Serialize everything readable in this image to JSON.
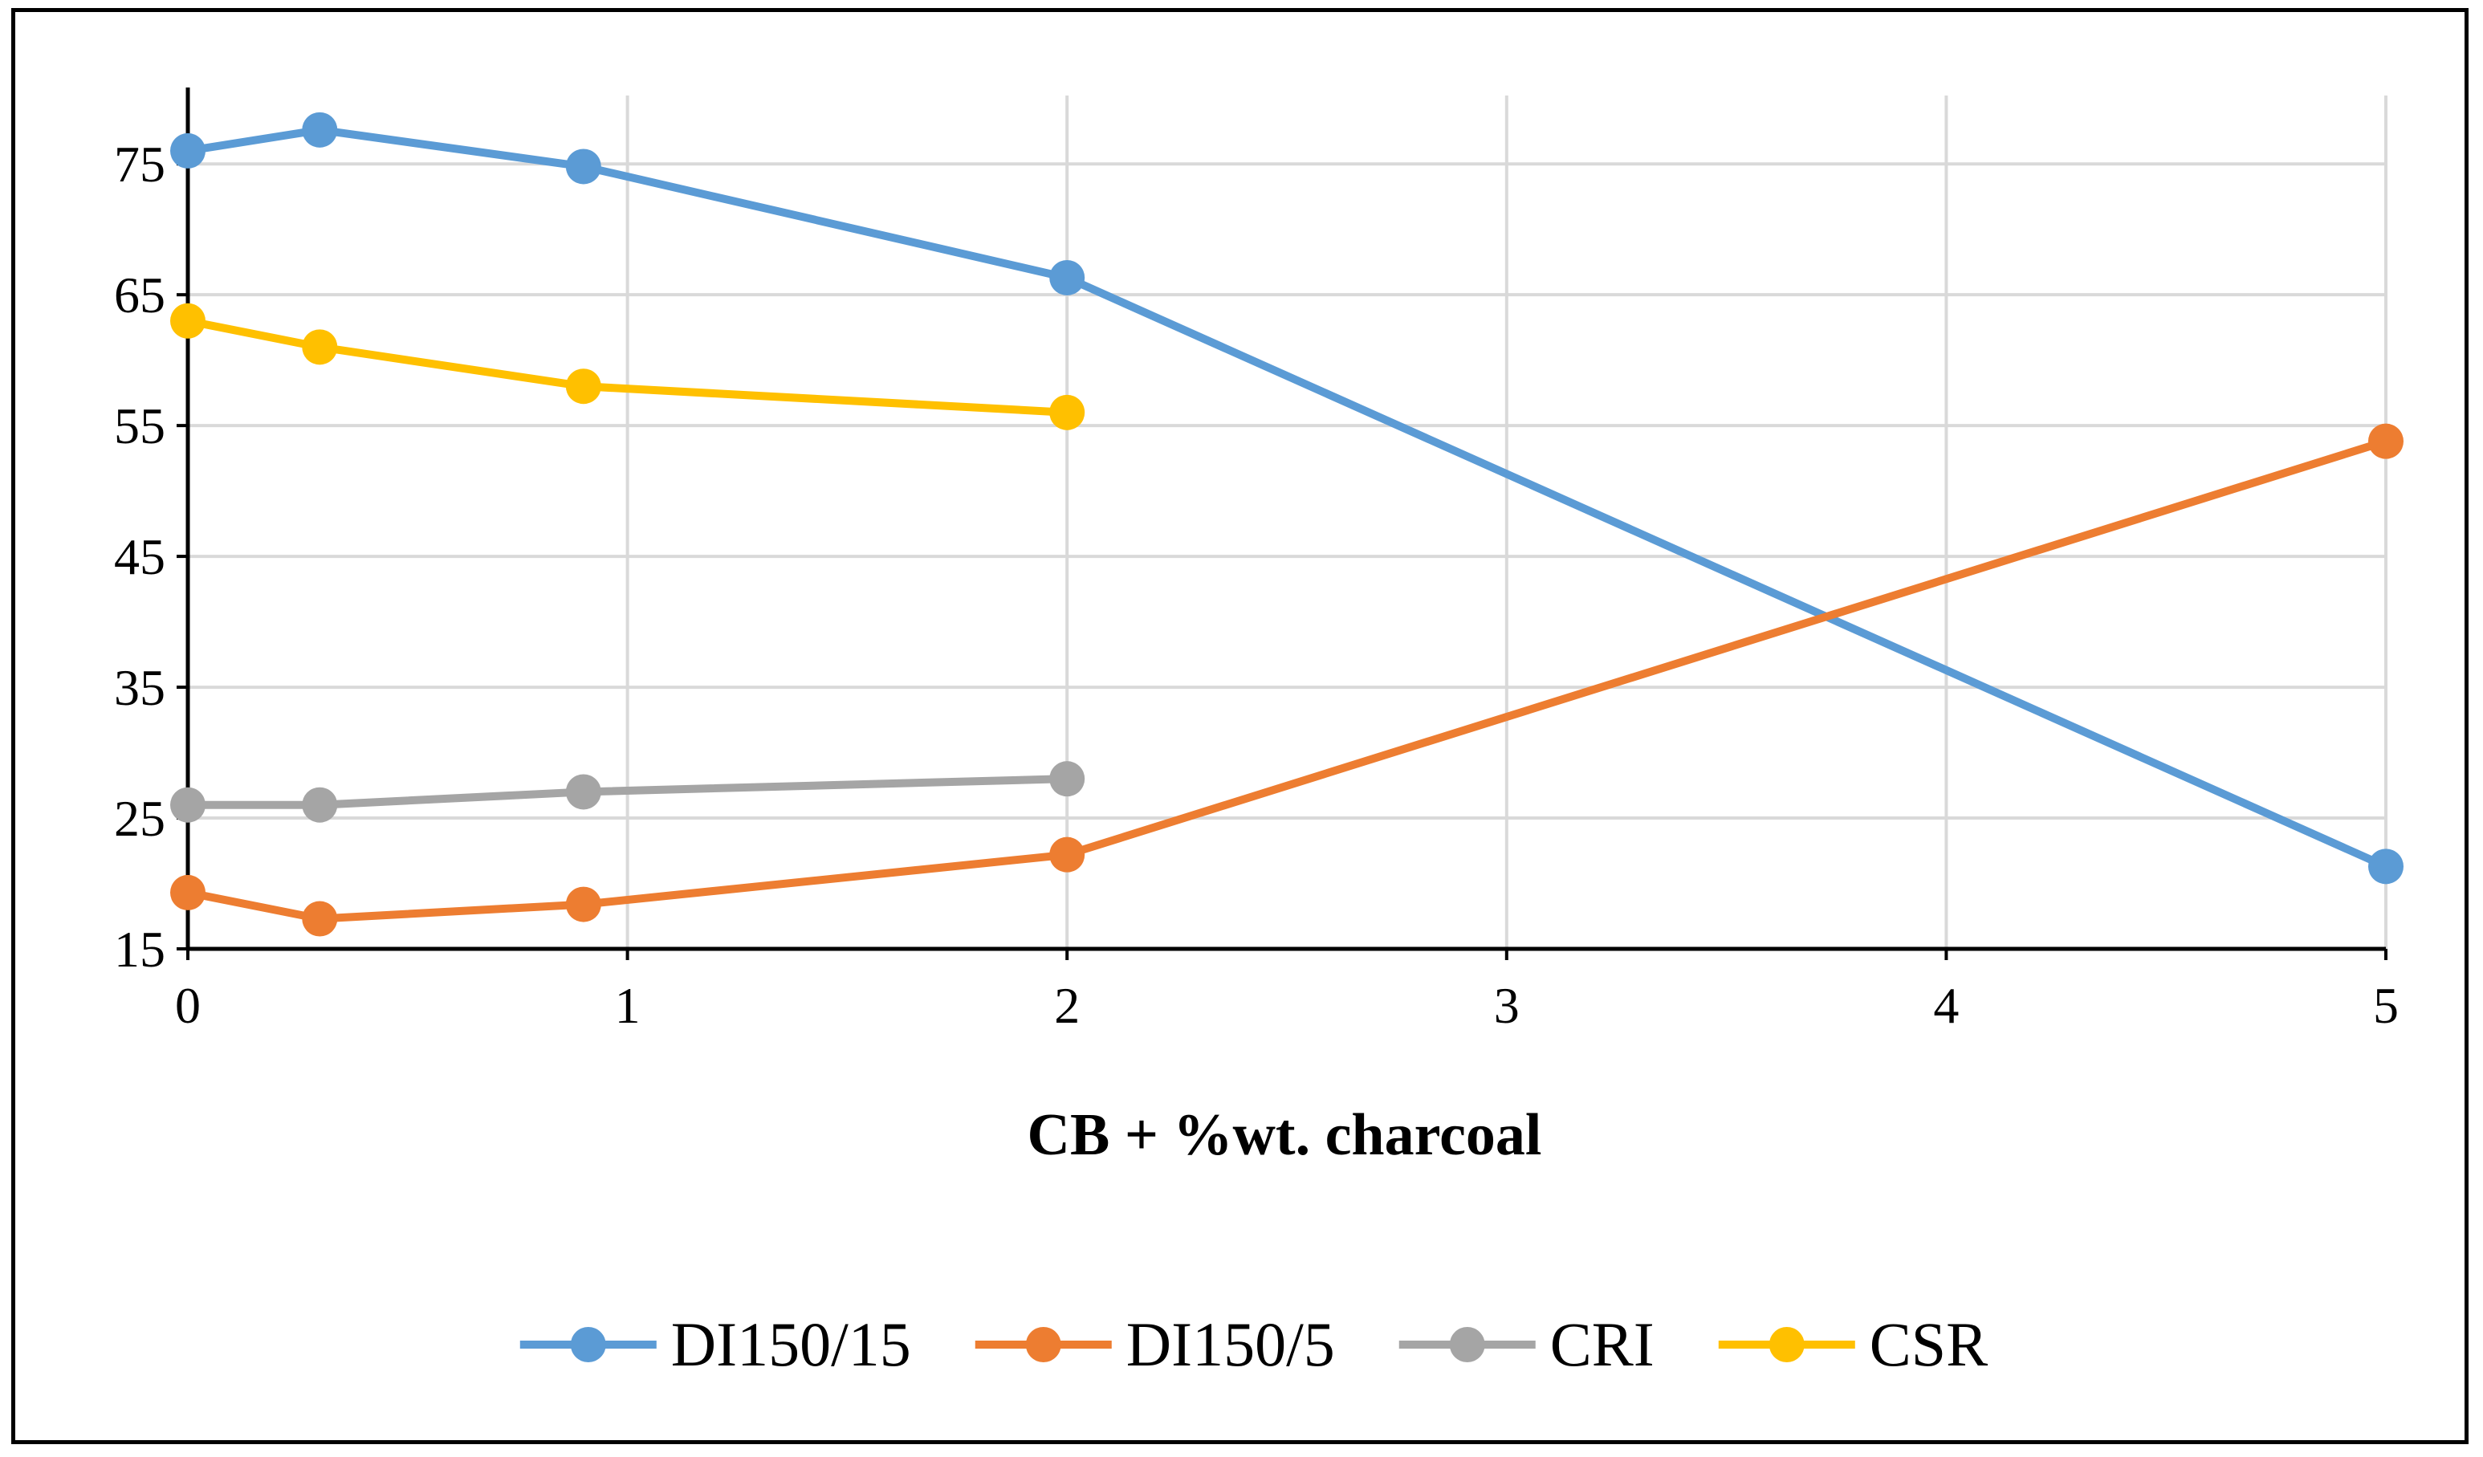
{
  "chart_data": {
    "type": "line",
    "title": "",
    "xlabel": "CB + %wt. charcoal",
    "ylabel": "",
    "xlim": [
      0,
      5
    ],
    "ylim": [
      15,
      79
    ],
    "x_ticks": [
      "0",
      "1",
      "2",
      "3",
      "4",
      "5"
    ],
    "y_ticks": [
      "15",
      "25",
      "35",
      "45",
      "55",
      "65",
      "75"
    ],
    "grid": true,
    "legend_position": "bottom",
    "series": [
      {
        "name": "DI150/15",
        "color": "#5B9BD5",
        "x": [
          0,
          0.3,
          0.9,
          2,
          5
        ],
        "values": [
          76,
          77.6,
          74.8,
          66.3,
          21.3
        ]
      },
      {
        "name": "DI150/5",
        "color": "#ED7D31",
        "x": [
          0,
          0.3,
          0.9,
          2,
          5
        ],
        "values": [
          19.3,
          17.3,
          18.4,
          22.2,
          53.8
        ]
      },
      {
        "name": "CRI",
        "color": "#A5A5A5",
        "x": [
          0,
          0.3,
          0.9,
          2
        ],
        "values": [
          26,
          26,
          27,
          28
        ]
      },
      {
        "name": "CSR",
        "color": "#FFC000",
        "x": [
          0,
          0.3,
          0.9,
          2
        ],
        "values": [
          63,
          61,
          58,
          56
        ]
      }
    ]
  }
}
